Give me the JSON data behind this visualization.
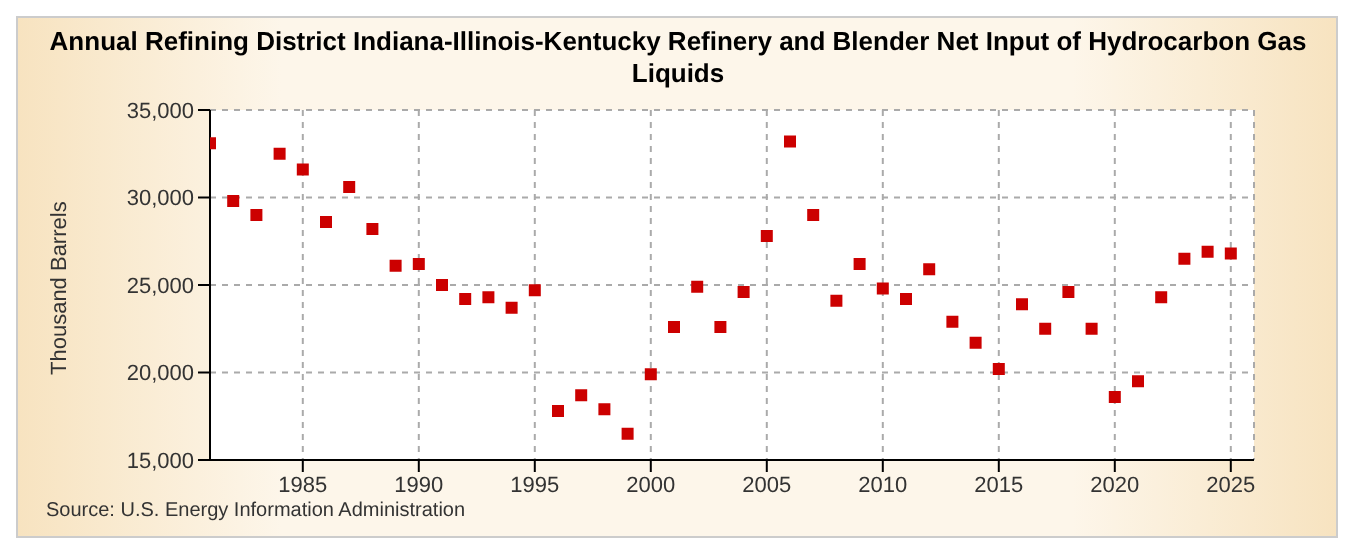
{
  "chart_data": {
    "type": "scatter",
    "title": "Annual Refining District Indiana-Illinois-Kentucky Refinery and Blender Net Input of Hydrocarbon Gas Liquids",
    "ylabel": "Thousand Barrels",
    "annotations": [
      "Source: U.S. Energy Information Administration"
    ],
    "x": [
      1981,
      1982,
      1983,
      1984,
      1985,
      1986,
      1987,
      1988,
      1989,
      1990,
      1991,
      1992,
      1993,
      1994,
      1995,
      1996,
      1997,
      1998,
      1999,
      2000,
      2001,
      2002,
      2003,
      2004,
      2005,
      2006,
      2007,
      2008,
      2009,
      2010,
      2011,
      2012,
      2013,
      2014,
      2015,
      2016,
      2017,
      2018,
      2019,
      2020,
      2021,
      2022,
      2023,
      2024,
      2025
    ],
    "series": [
      {
        "color": "#cc0000",
        "values": [
          33100,
          29800,
          29000,
          32500,
          31600,
          28600,
          30600,
          28200,
          26100,
          26200,
          25000,
          24200,
          24300,
          23700,
          24700,
          17800,
          18700,
          17900,
          16500,
          19900,
          22600,
          24900,
          22600,
          24600,
          27800,
          33200,
          29000,
          24100,
          26200,
          24800,
          24200,
          25900,
          22900,
          21700,
          20200,
          23900,
          22500,
          24600,
          22500,
          18600,
          19500,
          24300,
          26500,
          26900,
          26800
        ]
      }
    ],
    "xlim": [
      1981,
      2026
    ],
    "xticks": [
      1985,
      1990,
      1995,
      2000,
      2005,
      2010,
      2015,
      2020,
      2025
    ],
    "ylim": [
      15000,
      35000
    ],
    "yticks": [
      {
        "value": 15000,
        "label": "15,000"
      },
      {
        "value": 20000,
        "label": "20,000"
      },
      {
        "value": 25000,
        "label": "25,000"
      },
      {
        "value": 30000,
        "label": "30,000"
      },
      {
        "value": 35000,
        "label": "35,000"
      }
    ],
    "grid": true,
    "legend": false,
    "marker": "square"
  }
}
